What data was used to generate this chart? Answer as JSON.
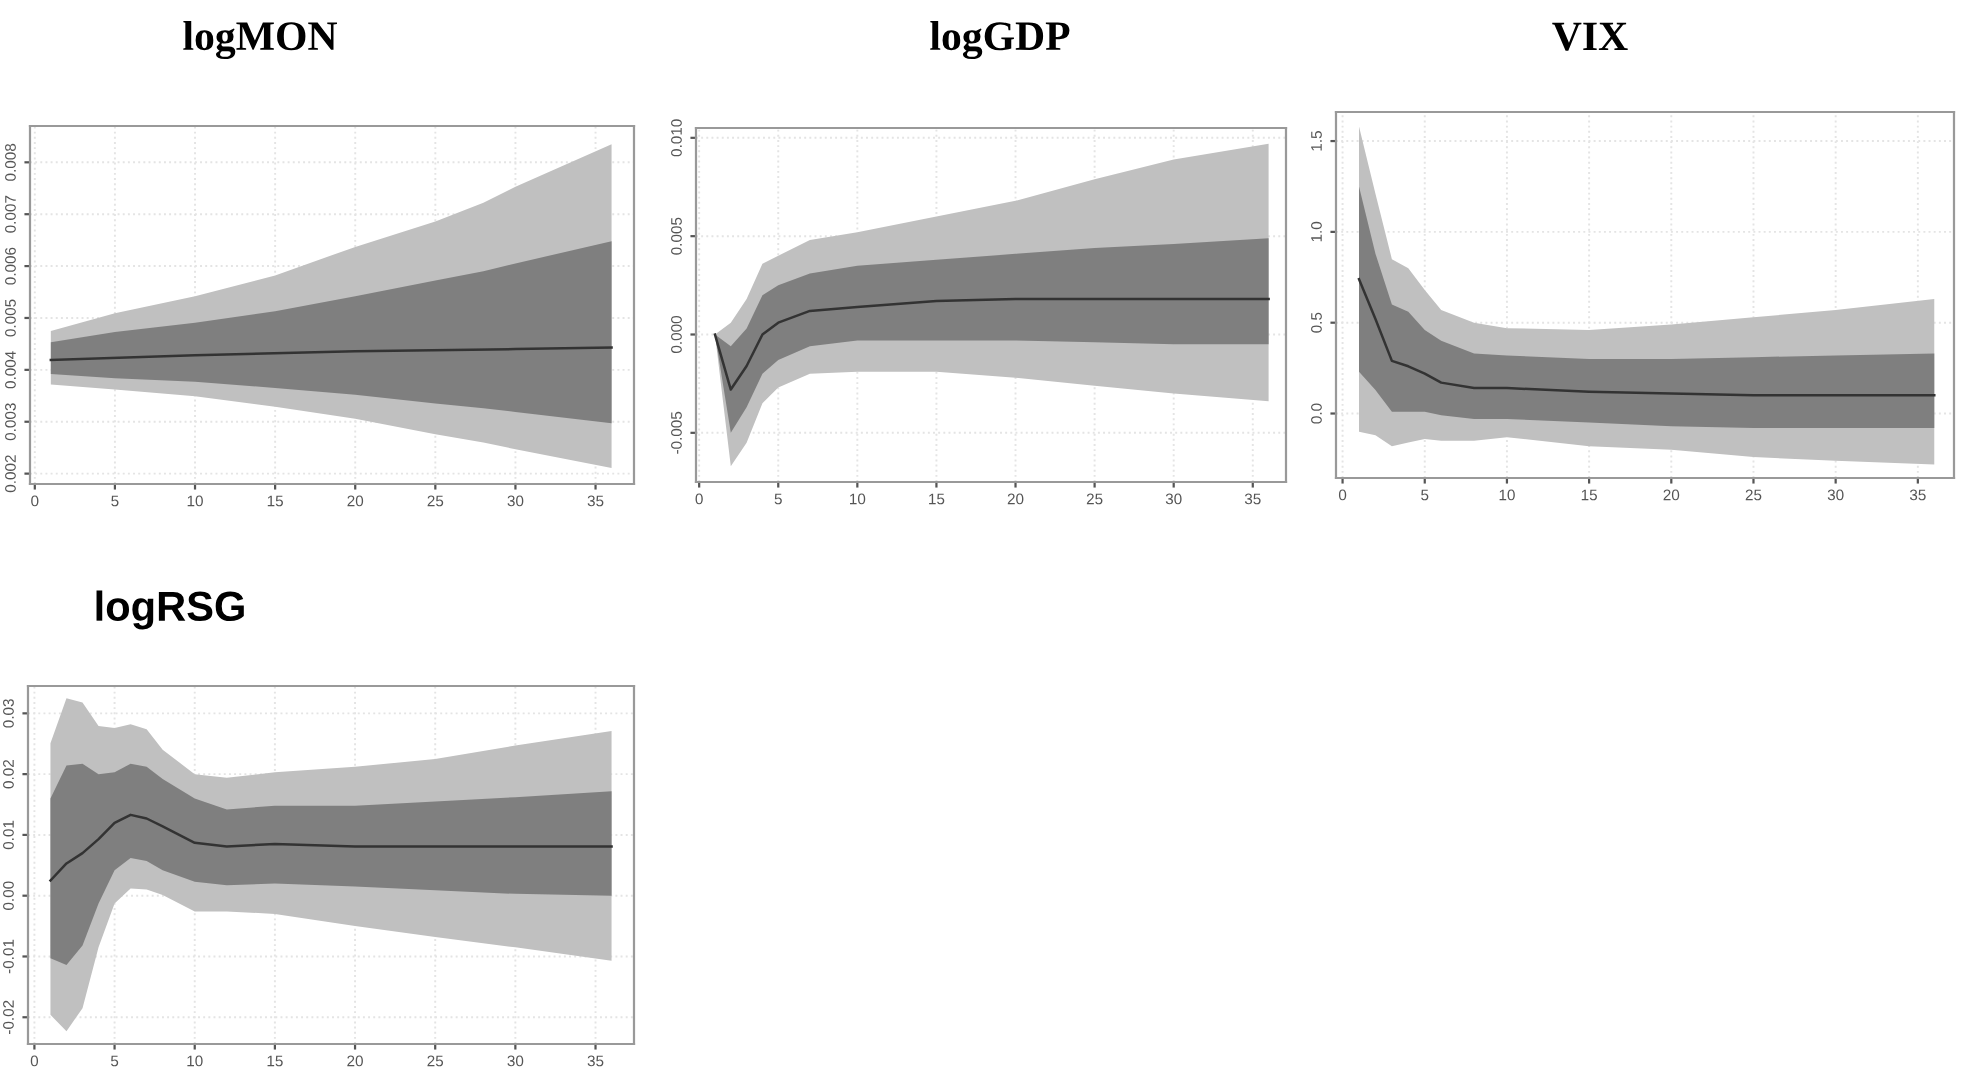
{
  "chart_data": [
    {
      "type": "line",
      "title": "logMON",
      "xlim": [
        -0.3,
        37.4
      ],
      "ylim": [
        0.0018,
        0.0087
      ],
      "xticks": [
        0,
        5,
        10,
        15,
        20,
        25,
        30,
        35
      ],
      "yticks": [
        {
          "value": 0.002,
          "label": "0.002"
        },
        {
          "value": 0.003,
          "label": "0.003"
        },
        {
          "value": 0.004,
          "label": "0.004"
        },
        {
          "value": 0.005,
          "label": "0.005"
        },
        {
          "value": 0.006,
          "label": "0.006"
        },
        {
          "value": 0.007,
          "label": "0.007"
        },
        {
          "value": 0.008,
          "label": "0.008"
        }
      ],
      "grid": true,
      "series": [
        {
          "color": "#c0c0c0",
          "x": [
            1,
            5,
            10,
            15,
            20,
            25,
            28,
            30,
            36
          ],
          "values": [
            null,
            null,
            null,
            null,
            null,
            null,
            null,
            null,
            null
          ],
          "lower": [
            0.00372,
            0.00362,
            0.00349,
            0.00329,
            0.00306,
            0.00276,
            0.0026,
            0.00247,
            0.00211
          ],
          "upper": [
            0.00475,
            0.00509,
            0.00542,
            0.00582,
            0.00637,
            0.00686,
            0.00722,
            0.00753,
            0.00835
          ]
        },
        {
          "color": "#7f7f7f",
          "x": [
            1,
            5,
            10,
            15,
            20,
            25,
            28,
            30,
            36
          ],
          "values": [
            null,
            null,
            null,
            null,
            null,
            null,
            null,
            null,
            null
          ],
          "lower": [
            0.00392,
            0.00384,
            0.00377,
            0.00365,
            0.00352,
            0.00335,
            0.00326,
            0.00319,
            0.00297
          ],
          "upper": [
            0.00453,
            0.00473,
            0.00491,
            0.00513,
            0.00542,
            0.00572,
            0.0059,
            0.00605,
            0.00648
          ]
        },
        {
          "color": "#333333",
          "x": [
            1,
            10,
            20,
            30,
            36
          ],
          "values": [
            0.00419,
            0.00428,
            0.00436,
            0.0044,
            0.00443
          ]
        }
      ]
    },
    {
      "type": "line",
      "title": "logGDP",
      "xlim": [
        -0.2,
        37.1
      ],
      "ylim": [
        -0.0075,
        0.0105
      ],
      "xticks": [
        0,
        5,
        10,
        15,
        20,
        25,
        30,
        35
      ],
      "yticks": [
        {
          "value": -0.005,
          "label": "-0.005"
        },
        {
          "value": 0,
          "label": "0.000"
        },
        {
          "value": 0.005,
          "label": "0.005"
        },
        {
          "value": 0.01,
          "label": "0.010"
        }
      ],
      "grid": true,
      "series": [
        {
          "color": "#c0c0c0",
          "x": [
            1,
            2,
            3,
            4,
            5,
            7,
            10,
            15,
            20,
            25,
            30,
            36
          ],
          "values": [
            null,
            null,
            null,
            null,
            null,
            null,
            null,
            null,
            null,
            null,
            null,
            null
          ],
          "lower": [
            0,
            -0.0067,
            -0.0055,
            -0.0035,
            -0.0027,
            -0.002,
            -0.0019,
            -0.0019,
            -0.0022,
            -0.0026,
            -0.003,
            -0.0034
          ],
          "upper": [
            0,
            0.0006,
            0.0018,
            0.0036,
            0.004,
            0.0048,
            0.0052,
            0.006,
            0.0068,
            0.0079,
            0.0089,
            0.0097
          ]
        },
        {
          "color": "#7f7f7f",
          "x": [
            1,
            2,
            3,
            4,
            5,
            7,
            10,
            15,
            20,
            25,
            30,
            36
          ],
          "values": [
            null,
            null,
            null,
            null,
            null,
            null,
            null,
            null,
            null,
            null,
            null,
            null
          ],
          "lower": [
            0,
            -0.005,
            -0.0037,
            -0.002,
            -0.0013,
            -0.0006,
            -0.0003,
            -0.0003,
            -0.0003,
            -0.0004,
            -0.0005,
            -0.0005
          ],
          "upper": [
            0,
            -0.0006,
            0.0003,
            0.002,
            0.0025,
            0.0031,
            0.0035,
            0.0038,
            0.0041,
            0.0044,
            0.0046,
            0.0049
          ]
        },
        {
          "color": "#333333",
          "x": [
            1,
            2,
            3,
            4,
            5,
            7,
            10,
            15,
            20,
            36
          ],
          "values": [
            0,
            -0.0028,
            -0.0016,
            0,
            0.0006,
            0.0012,
            0.0014,
            0.0017,
            0.0018,
            0.0018
          ]
        }
      ]
    },
    {
      "type": "line",
      "title": "VIX",
      "xlim": [
        -0.4,
        37.2
      ],
      "ylim": [
        -0.355,
        1.66
      ],
      "xticks": [
        0,
        5,
        10,
        15,
        20,
        25,
        30,
        35
      ],
      "yticks": [
        {
          "value": 0,
          "label": "0.0"
        },
        {
          "value": 0.5,
          "label": "0.5"
        },
        {
          "value": 1,
          "label": "1.0"
        },
        {
          "value": 1.5,
          "label": "1.5"
        }
      ],
      "grid": true,
      "series": [
        {
          "color": "#c0c0c0",
          "x": [
            1,
            2,
            3,
            4,
            5,
            6,
            8,
            10,
            15,
            20,
            25,
            30,
            36
          ],
          "values": [
            null,
            null,
            null,
            null,
            null,
            null,
            null,
            null,
            null,
            null,
            null,
            null,
            null
          ],
          "lower": [
            -0.1,
            -0.12,
            -0.18,
            -0.16,
            -0.14,
            -0.15,
            -0.15,
            -0.13,
            -0.18,
            -0.2,
            -0.24,
            -0.26,
            -0.28
          ],
          "upper": [
            1.58,
            1.21,
            0.85,
            0.8,
            0.68,
            0.57,
            0.5,
            0.47,
            0.46,
            0.49,
            0.53,
            0.57,
            0.63
          ]
        },
        {
          "color": "#7f7f7f",
          "x": [
            1,
            2,
            3,
            4,
            5,
            6,
            8,
            10,
            15,
            20,
            25,
            30,
            36
          ],
          "values": [
            null,
            null,
            null,
            null,
            null,
            null,
            null,
            null,
            null,
            null,
            null,
            null,
            null
          ],
          "lower": [
            0.23,
            0.13,
            0.01,
            0.01,
            0.01,
            -0.01,
            -0.03,
            -0.03,
            -0.05,
            -0.07,
            -0.08,
            -0.08,
            -0.08
          ],
          "upper": [
            1.25,
            0.88,
            0.6,
            0.56,
            0.46,
            0.4,
            0.33,
            0.32,
            0.3,
            0.3,
            0.31,
            0.32,
            0.33
          ]
        },
        {
          "color": "#333333",
          "x": [
            1,
            2,
            3,
            4,
            5,
            6,
            8,
            10,
            15,
            20,
            25,
            36
          ],
          "values": [
            0.74,
            0.52,
            0.29,
            0.26,
            0.22,
            0.17,
            0.14,
            0.14,
            0.12,
            0.11,
            0.1,
            0.1
          ]
        }
      ]
    },
    {
      "type": "line",
      "title": "logRSG",
      "xlim": [
        -0.4,
        37.4
      ],
      "ylim": [
        -0.0244,
        0.0345
      ],
      "xticks": [
        0,
        5,
        10,
        15,
        20,
        25,
        30,
        35
      ],
      "yticks": [
        {
          "value": -0.02,
          "label": "-0.02"
        },
        {
          "value": -0.01,
          "label": "-0.01"
        },
        {
          "value": 0,
          "label": "0.00"
        },
        {
          "value": 0.01,
          "label": "0.01"
        },
        {
          "value": 0.02,
          "label": "0.02"
        },
        {
          "value": 0.03,
          "label": "0.03"
        }
      ],
      "grid": true,
      "series": [
        {
          "color": "#c0c0c0",
          "x": [
            1,
            2,
            3,
            4,
            5,
            6,
            7,
            8,
            10,
            12,
            15,
            20,
            25,
            30,
            36
          ],
          "values": [
            null,
            null,
            null,
            null,
            null,
            null,
            null,
            null,
            null,
            null,
            null,
            null,
            null,
            null,
            null
          ],
          "lower": [
            -0.0196,
            -0.0223,
            -0.0185,
            -0.0085,
            -0.0013,
            0.0012,
            0.001,
            0.0001,
            -0.0026,
            -0.0026,
            -0.003,
            -0.005,
            -0.0068,
            -0.0085,
            -0.0107
          ],
          "upper": [
            0.0251,
            0.0325,
            0.0318,
            0.0279,
            0.0276,
            0.0282,
            0.0274,
            0.024,
            0.02,
            0.0194,
            0.0203,
            0.0212,
            0.0225,
            0.0247,
            0.0271
          ]
        },
        {
          "color": "#7f7f7f",
          "x": [
            1,
            2,
            3,
            4,
            5,
            6,
            7,
            8,
            10,
            12,
            15,
            20,
            25,
            30,
            36
          ],
          "values": [
            null,
            null,
            null,
            null,
            null,
            null,
            null,
            null,
            null,
            null,
            null,
            null,
            null,
            null,
            null
          ],
          "lower": [
            -0.0103,
            -0.0114,
            -0.0082,
            -0.0013,
            0.0042,
            0.0062,
            0.0057,
            0.0042,
            0.0023,
            0.0017,
            0.002,
            0.0015,
            0.0009,
            0.0003,
            0
          ],
          "upper": [
            0.016,
            0.0214,
            0.0217,
            0.02,
            0.0203,
            0.0217,
            0.0212,
            0.0192,
            0.016,
            0.0142,
            0.0148,
            0.0148,
            0.0155,
            0.0162,
            0.0172
          ]
        },
        {
          "color": "#333333",
          "x": [
            1,
            2,
            3,
            4,
            5,
            6,
            7,
            8,
            10,
            12,
            15,
            20,
            36
          ],
          "values": [
            0.0025,
            0.0053,
            0.007,
            0.0093,
            0.012,
            0.0133,
            0.0127,
            0.0114,
            0.0087,
            0.0081,
            0.0085,
            0.0081,
            0.0081
          ]
        }
      ]
    }
  ]
}
